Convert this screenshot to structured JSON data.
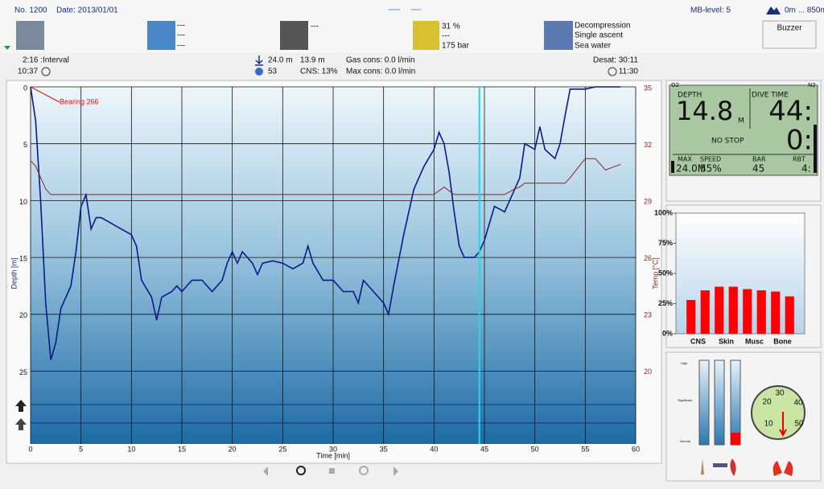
{
  "header": {
    "number": "No. 1200",
    "date": "Date: 2013/01/01",
    "mb_level": "MB-level: 5",
    "altitude": "0m ... 850m",
    "buzzer": "Buzzer"
  },
  "tiles": [
    {
      "lines": [
        "---",
        "---",
        "---"
      ]
    },
    {
      "lines": [
        "---"
      ]
    },
    {
      "lines": [
        "31 %",
        "---",
        "175 bar"
      ]
    },
    {
      "lines": [
        "Decompression",
        "Single ascent",
        "Sea water"
      ]
    }
  ],
  "stats": {
    "interval": "2:16 :Interval",
    "entry_time": "10:37",
    "max_depth": "24.0 m",
    "avg_depth": "13.9 m",
    "dive_time": "53",
    "cns": "CNS:  13%",
    "gas_cons": "Gas cons:  0.0 l/min",
    "max_cons": "Max cons:  0.0 l/min",
    "desat": "Desat:  30:11",
    "exit_time": "11:30"
  },
  "computer": {
    "o2": "O2",
    "n2": "N2",
    "depth_label": "DEPTH",
    "depth": "14.8",
    "depth_unit": "M",
    "time_label": "DIVE TIME",
    "time": "44:",
    "stop": "NO STOP",
    "stop_time": "0:",
    "max_label": "MAX",
    "max": "24.0M",
    "speed_label": "SPEED",
    "speed": "55%",
    "bar_label": "BAR",
    "bar": "45",
    "rbt_label": "RBT",
    "rbt": "4:"
  },
  "gauges": {
    "high": "High",
    "significant": "Significant",
    "normal": "Normal",
    "dial_ticks": [
      "10",
      "20",
      "30",
      "40",
      "50"
    ]
  },
  "chart_data": [
    {
      "type": "line",
      "annotation": "Bearing 266",
      "x_label": "Time [min]",
      "y_label": "Depth [m]",
      "y2_label": "Temp [°C]",
      "xlim": [
        0,
        60
      ],
      "xticks": [
        0,
        5,
        10,
        15,
        20,
        25,
        30,
        35,
        40,
        45,
        50,
        55,
        60
      ],
      "ylim": [
        31.4,
        0
      ],
      "yticks": [
        0,
        5,
        10,
        15,
        20,
        25
      ],
      "y2lim": [
        16.1,
        35
      ],
      "y2ticks": [
        20,
        23,
        26,
        29,
        32,
        35
      ],
      "grid": true,
      "marker_x": 44.5,
      "x": [
        0,
        0.5,
        1,
        1.5,
        2,
        2.5,
        3,
        3.5,
        4,
        4.5,
        5,
        5.5,
        6,
        6.5,
        7,
        8,
        9,
        10,
        10.5,
        11,
        12,
        12.5,
        13,
        14,
        14.5,
        15,
        16,
        17,
        18,
        19,
        19.5,
        20,
        20.5,
        21,
        22,
        22.5,
        23,
        24,
        25,
        26,
        27,
        27.5,
        28,
        29,
        30,
        31,
        32,
        32.5,
        33,
        34,
        34.5,
        35,
        35.5,
        36,
        37,
        38,
        39,
        40,
        40.5,
        41,
        41.5,
        42,
        42.5,
        43,
        44,
        44.5,
        45,
        46,
        47,
        48,
        48.5,
        49,
        50,
        50.5,
        51,
        52,
        52.5,
        53,
        53.5,
        55,
        56,
        57,
        58.5
      ],
      "series": [
        {
          "color": "#0b1a8a",
          "values": [
            0,
            3,
            10,
            19,
            24,
            22.5,
            19.5,
            18.5,
            17.5,
            14.5,
            10.5,
            9.5,
            12.5,
            11.5,
            11.5,
            12,
            12.5,
            13,
            14,
            17,
            18.5,
            20.5,
            18.5,
            18,
            17.5,
            18,
            17,
            17,
            18,
            17,
            15.5,
            14.5,
            15.5,
            14.5,
            15.5,
            16.5,
            15.5,
            15.3,
            15.5,
            16,
            15.5,
            14,
            15.5,
            17,
            17,
            18,
            18,
            19,
            17,
            18,
            18.5,
            19,
            20,
            17.5,
            13,
            9,
            7,
            5.5,
            4,
            5,
            7.5,
            11,
            14,
            15,
            15,
            14.5,
            13.5,
            10.5,
            11,
            9,
            8,
            5,
            5.5,
            3.5,
            5.5,
            6.3,
            5,
            2.5,
            0.2,
            0.2,
            0,
            0,
            0
          ]
        },
        {
          "color": "#8b2525",
          "axis": "y2",
          "values": [
            31.1,
            30.8,
            30.2,
            29.6,
            29.3,
            29.3,
            29.3,
            29.3,
            29.3,
            29.3,
            29.3,
            29.3,
            29.3,
            29.3,
            29.3,
            29.3,
            29.3,
            29.3,
            29.3,
            29.3,
            29.3,
            29.3,
            29.3,
            29.3,
            29.3,
            29.3,
            29.3,
            29.3,
            29.3,
            29.3,
            29.3,
            29.3,
            29.3,
            29.3,
            29.3,
            29.3,
            29.3,
            29.3,
            29.3,
            29.3,
            29.3,
            29.3,
            29.3,
            29.3,
            29.3,
            29.3,
            29.3,
            29.3,
            29.3,
            29.3,
            29.3,
            29.3,
            29.3,
            29.3,
            29.3,
            29.3,
            29.3,
            29.3,
            29.5,
            29.7,
            29.5,
            29.3,
            29.3,
            29.3,
            29.3,
            29.3,
            29.3,
            29.3,
            29.3,
            29.6,
            29.7,
            29.9,
            29.9,
            29.9,
            29.9,
            29.9,
            29.9,
            29.9,
            30.2,
            31.2,
            31.2,
            30.6,
            30.9
          ]
        }
      ]
    },
    {
      "type": "bar",
      "categories": [
        "CNS",
        null,
        "Skin",
        null,
        "Musc",
        null,
        "Bone",
        null
      ],
      "values": [
        28,
        36,
        39,
        39,
        37,
        36,
        35,
        31
      ],
      "color": "#ff0000",
      "ylim": [
        0,
        100
      ],
      "yticks": [
        {
          "value": 0,
          "label": "0%"
        },
        {
          "value": 25,
          "label": "25%"
        },
        {
          "value": 50,
          "label": "50%"
        },
        {
          "value": 75,
          "label": "75%"
        },
        {
          "value": 100,
          "label": "100%"
        }
      ]
    }
  ]
}
